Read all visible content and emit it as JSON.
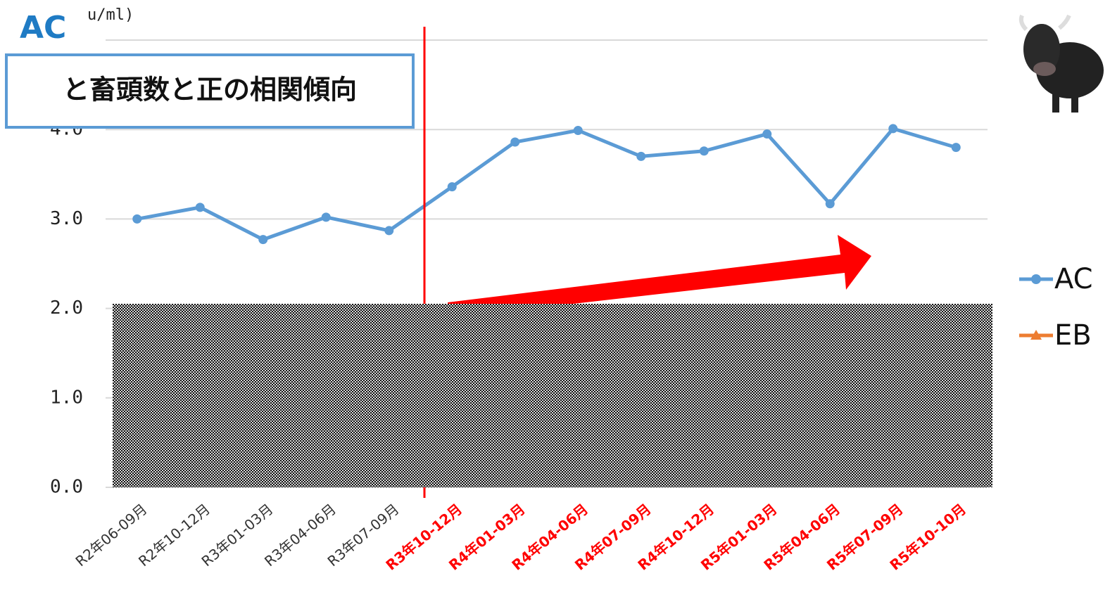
{
  "chart_data": {
    "type": "line",
    "title": "AC",
    "y_unit": "u/ml)",
    "annotation": "と畜頭数と正の相関傾向",
    "categories": [
      "R2年06-09月",
      "R2年10-12月",
      "R3年01-03月",
      "R3年04-06月",
      "R3年07-09月",
      "R3年10-12月",
      "R4年01-03月",
      "R4年04-06月",
      "R4年07-09月",
      "R4年10-12月",
      "R5年01-03月",
      "R5年04-06月",
      "R5年07-09月",
      "R5年10-10月"
    ],
    "category_colors": [
      "#333333",
      "#333333",
      "#333333",
      "#333333",
      "#333333",
      "#ff0000",
      "#ff0000",
      "#ff0000",
      "#ff0000",
      "#ff0000",
      "#ff0000",
      "#ff0000",
      "#ff0000",
      "#ff0000"
    ],
    "series": [
      {
        "name": "AC",
        "color": "#5b9bd5",
        "marker": "circle",
        "values": [
          3.0,
          3.13,
          2.77,
          3.02,
          2.87,
          3.36,
          3.86,
          3.99,
          3.7,
          3.76,
          3.95,
          3.17,
          4.01,
          3.8
        ]
      },
      {
        "name": "EB",
        "color": "#ed7d31",
        "marker": "triangle",
        "values": [
          null,
          null,
          null,
          null,
          null,
          null,
          null,
          null,
          null,
          null,
          null,
          null,
          null,
          null
        ]
      }
    ],
    "ylim": [
      0,
      5
    ],
    "yticks": [
      {
        "value": 0,
        "label": "0.0"
      },
      {
        "value": 1,
        "label": "1.0"
      },
      {
        "value": 2,
        "label": "2.0"
      },
      {
        "value": 3,
        "label": "3.0"
      },
      {
        "value": 4,
        "label": "4.0"
      }
    ],
    "grid": true,
    "legend": "right"
  }
}
